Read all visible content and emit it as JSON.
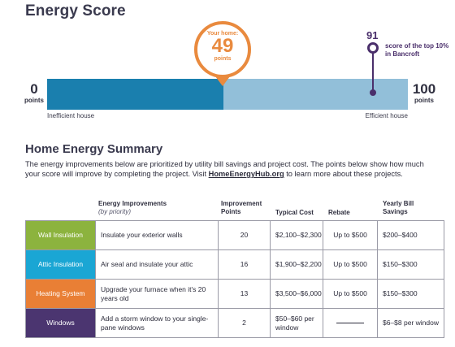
{
  "score": {
    "title": "Energy Score",
    "low": {
      "value": "0",
      "label": "points",
      "caption": "Inefficient house"
    },
    "high": {
      "value": "100",
      "label": "points",
      "caption": "Efficient house"
    },
    "your_home": {
      "label": "Your home:",
      "value": "49",
      "unit": "points"
    },
    "top_marker": {
      "value": "91",
      "text": "score of the top 10% in Bancroft"
    },
    "colors": {
      "filled": "#1a7fae",
      "remaining": "#92bfd9",
      "home": "#e98a3e",
      "top": "#4a2f6b"
    }
  },
  "summary": {
    "title": "Home Energy Summary",
    "intro_before": "The energy improvements below are prioritized by utility bill savings and project cost. The points below show how much your score will improve by completing the project. Visit ",
    "intro_link": "HomeEnergyHub.org",
    "intro_after": " to learn more about these projects."
  },
  "table": {
    "headers": {
      "improvements": "Energy Improvements",
      "improvements_sub": "(by priority)",
      "points": "Improvement Points",
      "cost": "Typical Cost",
      "rebate": "Rebate",
      "savings": "Yearly Bill Savings"
    },
    "rows": [
      {
        "category": "Wall Insulation",
        "color": "#8cb33e",
        "description": "Insulate your exterior walls",
        "points": "20",
        "cost": "$2,100–$2,300",
        "rebate": "Up to $500",
        "savings": "$200–$400"
      },
      {
        "category": "Attic Insulation",
        "color": "#1aa6d4",
        "description": "Air seal and insulate your attic",
        "points": "16",
        "cost": "$1,900–$2,200",
        "rebate": "Up to $500",
        "savings": "$150–$300"
      },
      {
        "category": "Heating System",
        "color": "#e97f35",
        "description": "Upgrade your furnace when it's 20 years old",
        "points": "13",
        "cost": "$3,500–$6,000",
        "rebate": "Up to $500",
        "savings": "$150–$300"
      },
      {
        "category": "Windows",
        "color": "#4b3570",
        "description": "Add a storm window to your single-pane windows",
        "points": "2",
        "cost": "$50–$60 per window",
        "rebate": "",
        "savings": "$6–$8 per window"
      }
    ]
  }
}
